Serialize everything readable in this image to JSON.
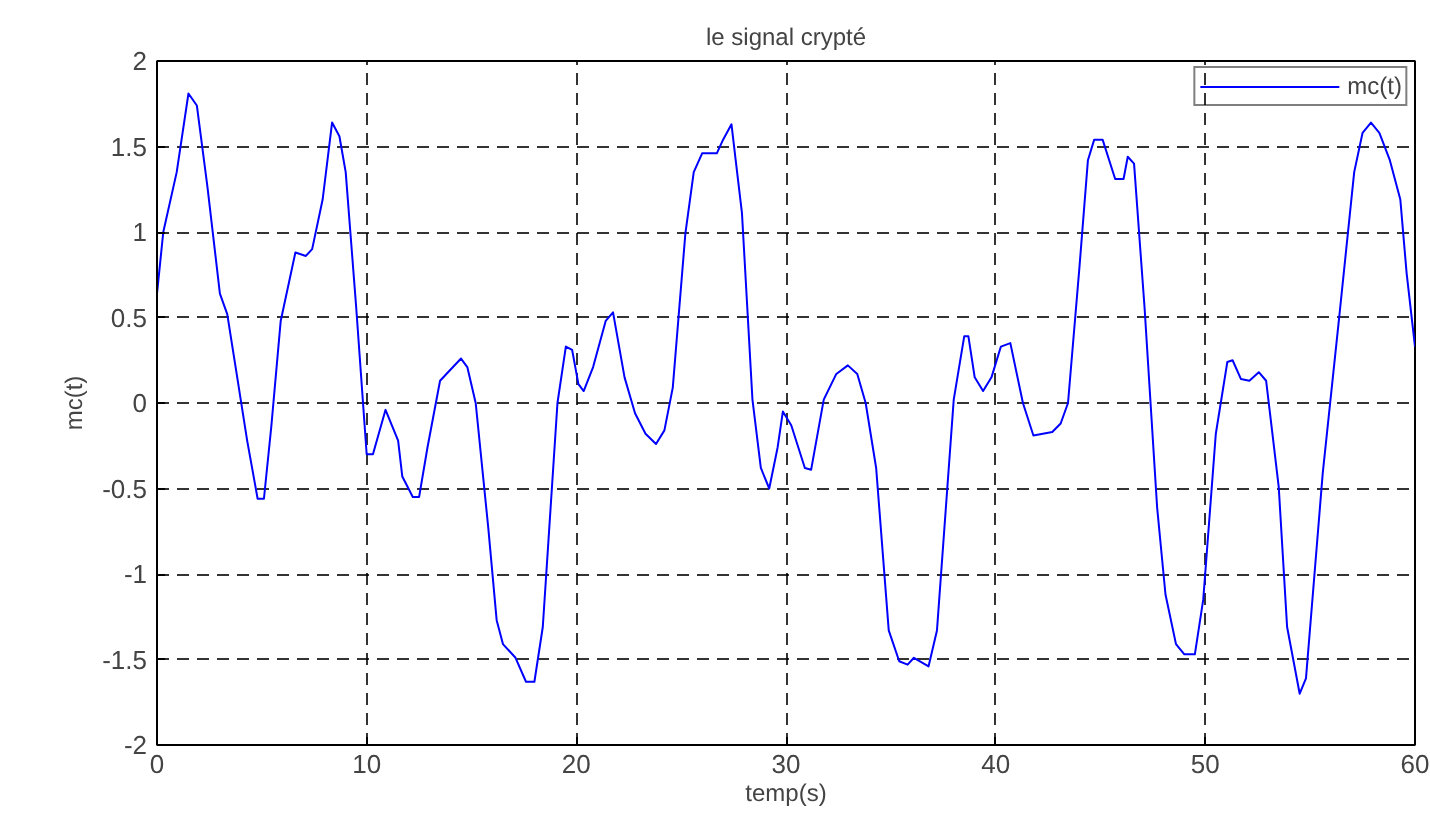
{
  "chart_data": {
    "type": "line",
    "title": "le signal crypté",
    "xlabel": "temp(s)",
    "ylabel": "mc(t)",
    "xlim": [
      0,
      60
    ],
    "ylim": [
      -2,
      2
    ],
    "xticks": [
      0,
      10,
      20,
      30,
      40,
      50,
      60
    ],
    "yticks": [
      -2,
      -1.5,
      -1,
      -0.5,
      0,
      0.5,
      1,
      1.5,
      2
    ],
    "grid": true,
    "legend": "top right",
    "marker": "none",
    "line_style": "solid",
    "series": [
      {
        "name": "mc(t)",
        "color": "#0000ff",
        "x": [
          0,
          0.3,
          0.94,
          1.5,
          1.9,
          2.4,
          3.0,
          3.35,
          3.8,
          4.3,
          4.8,
          5.1,
          5.45,
          5.9,
          6.6,
          7.1,
          7.4,
          7.9,
          8.35,
          8.7,
          9.0,
          9.5,
          10.0,
          10.3,
          10.9,
          11.5,
          11.7,
          12.2,
          12.5,
          12.9,
          13.5,
          14.5,
          14.8,
          15.2,
          15.8,
          16.2,
          16.5,
          17.1,
          17.6,
          18.0,
          18.4,
          19.1,
          19.5,
          19.8,
          20.1,
          20.35,
          20.8,
          21.4,
          21.75,
          22.3,
          22.8,
          23.3,
          23.8,
          24.2,
          24.6,
          25.2,
          25.6,
          26.0,
          26.7,
          27.0,
          27.4,
          27.6,
          27.9,
          28.4,
          28.8,
          29.2,
          29.6,
          29.85,
          30.25,
          30.9,
          31.2,
          31.8,
          32.4,
          32.95,
          33.4,
          33.8,
          34.3,
          34.9,
          35.4,
          35.8,
          36.1,
          36.8,
          37.2,
          38.0,
          38.5,
          38.7,
          39.0,
          39.4,
          39.8,
          40.25,
          40.7,
          41.3,
          41.8,
          42.7,
          43.1,
          43.45,
          44.0,
          44.4,
          44.7,
          45.1,
          45.7,
          46.1,
          46.3,
          46.6,
          47.1,
          47.7,
          48.1,
          48.6,
          49.0,
          49.5,
          49.9,
          50.5,
          51.05,
          51.3,
          51.7,
          52.1,
          52.55,
          52.9,
          53.5,
          53.9,
          54.5,
          54.8,
          55.6,
          56.4,
          57.1,
          57.5,
          57.9,
          58.3,
          58.8,
          59.3,
          59.6,
          60.0
        ],
        "values": [
          0.64,
          1.0,
          1.35,
          1.81,
          1.74,
          1.27,
          0.64,
          0.52,
          0.17,
          -0.22,
          -0.56,
          -0.56,
          -0.14,
          0.48,
          0.88,
          0.86,
          0.9,
          1.19,
          1.64,
          1.56,
          1.35,
          0.56,
          -0.3,
          -0.3,
          -0.04,
          -0.22,
          -0.43,
          -0.55,
          -0.55,
          -0.26,
          0.13,
          0.26,
          0.21,
          0.0,
          -0.73,
          -1.27,
          -1.41,
          -1.49,
          -1.63,
          -1.63,
          -1.31,
          0.0,
          0.33,
          0.31,
          0.11,
          0.07,
          0.21,
          0.48,
          0.53,
          0.15,
          -0.06,
          -0.18,
          -0.24,
          -0.16,
          0.09,
          0.99,
          1.35,
          1.46,
          1.46,
          1.54,
          1.63,
          1.42,
          1.11,
          0.02,
          -0.38,
          -0.5,
          -0.26,
          -0.05,
          -0.13,
          -0.38,
          -0.39,
          0.02,
          0.17,
          0.22,
          0.17,
          0.0,
          -0.38,
          -1.33,
          -1.51,
          -1.53,
          -1.49,
          -1.54,
          -1.33,
          0.02,
          0.39,
          0.39,
          0.15,
          0.07,
          0.15,
          0.33,
          0.35,
          0.0,
          -0.19,
          -0.17,
          -0.12,
          0.0,
          0.8,
          1.42,
          1.54,
          1.54,
          1.31,
          1.31,
          1.44,
          1.4,
          0.56,
          -0.61,
          -1.12,
          -1.41,
          -1.47,
          -1.47,
          -1.15,
          -0.18,
          0.24,
          0.25,
          0.14,
          0.13,
          0.18,
          0.13,
          -0.49,
          -1.31,
          -1.7,
          -1.61,
          -0.41,
          0.52,
          1.35,
          1.58,
          1.64,
          1.58,
          1.42,
          1.19,
          0.76,
          0.33
        ]
      }
    ]
  }
}
